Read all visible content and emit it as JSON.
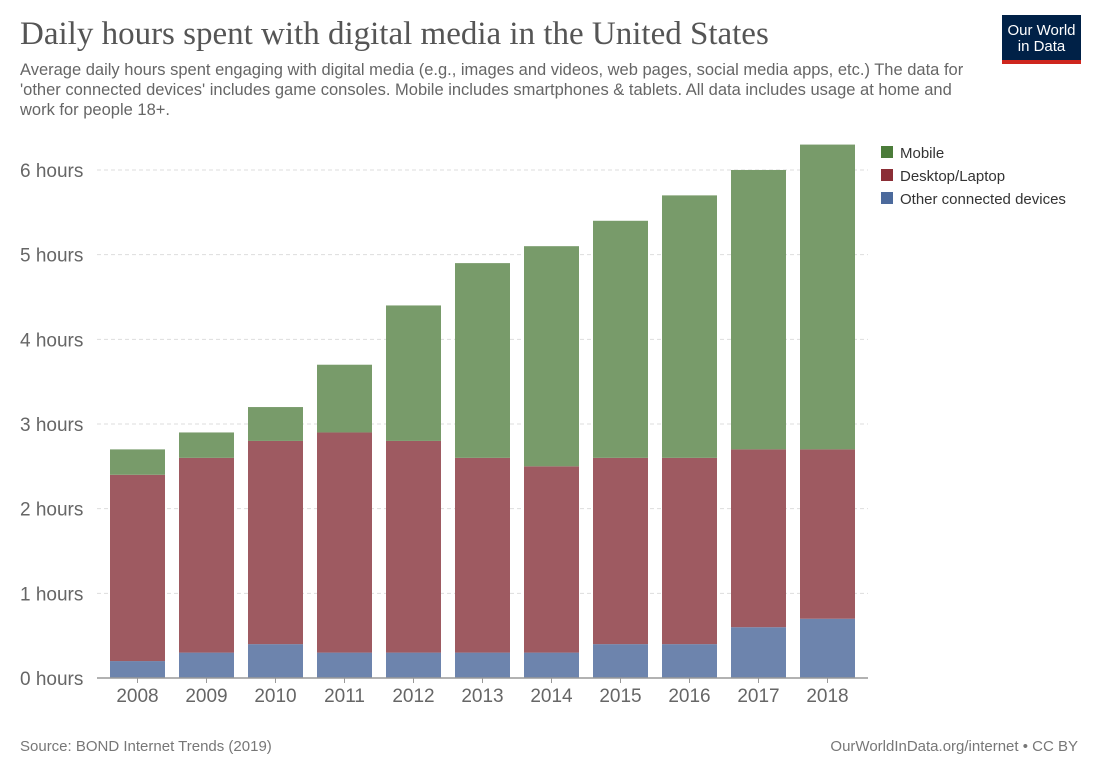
{
  "header": {
    "title": "Daily hours spent with digital media in the United States",
    "subtitle": "Average daily hours spent engaging with digital media (e.g., images and videos, web pages, social media apps, etc.) The data for 'other connected devices' includes game consoles. Mobile includes smartphones & tablets. All data includes usage at home and work for people 18+.",
    "logo": "Our World in Data"
  },
  "footer": {
    "source": "Source: BOND Internet Trends (2019)",
    "credit": "OurWorldInData.org/internet • CC BY"
  },
  "chart_data": {
    "type": "bar",
    "stacked": true,
    "categories": [
      "2008",
      "2009",
      "2010",
      "2011",
      "2012",
      "2013",
      "2014",
      "2015",
      "2016",
      "2017",
      "2018"
    ],
    "series": [
      {
        "name": "Other connected devices",
        "color": "#6d84ad",
        "values": [
          0.2,
          0.3,
          0.4,
          0.3,
          0.3,
          0.3,
          0.3,
          0.4,
          0.4,
          0.6,
          0.7
        ]
      },
      {
        "name": "Desktop/Laptop",
        "color": "#9e5a61",
        "values": [
          2.2,
          2.3,
          2.4,
          2.6,
          2.5,
          2.3,
          2.2,
          2.2,
          2.2,
          2.1,
          2.0
        ]
      },
      {
        "name": "Mobile",
        "color": "#789b6a",
        "values": [
          0.3,
          0.3,
          0.4,
          0.8,
          1.6,
          2.3,
          2.6,
          2.8,
          3.1,
          3.3,
          3.6
        ]
      }
    ],
    "legend_order": [
      "Mobile",
      "Desktop/Laptop",
      "Other connected devices"
    ],
    "legend_colors": {
      "Mobile": "#4b7c3a",
      "Desktop/Laptop": "#8b2e36",
      "Other connected devices": "#4c6a9c"
    },
    "yticks": [
      "0 hours",
      "1 hours",
      "2 hours",
      "3 hours",
      "4 hours",
      "5 hours",
      "6 hours"
    ],
    "ylim": [
      0,
      6.3
    ],
    "grid": true,
    "legend": "right"
  }
}
